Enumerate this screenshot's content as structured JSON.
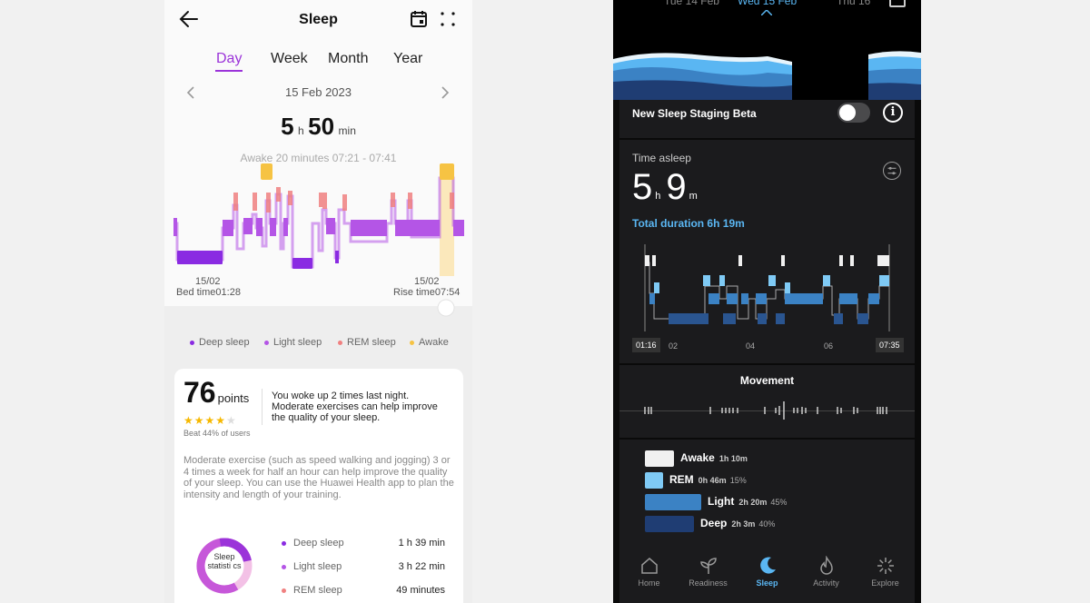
{
  "huawei": {
    "title": "Sleep",
    "tabs": [
      {
        "label": "Day",
        "active": true
      },
      {
        "label": "Week",
        "active": false
      },
      {
        "label": "Month",
        "active": false
      },
      {
        "label": "Year",
        "active": false
      }
    ],
    "date": "15 Feb 2023",
    "duration": {
      "h": "5",
      "h_unit": "h",
      "m": "50",
      "m_unit": "min"
    },
    "awake_note": "Awake 20 minutes 07:21 - 07:41",
    "bed": {
      "date": "15/02",
      "label": "Bed time01:28"
    },
    "rise": {
      "date": "15/02",
      "label": "Rise time07:54"
    },
    "legend": [
      {
        "label": "Deep sleep",
        "color": "#8a2be2"
      },
      {
        "label": "Light sleep",
        "color": "#b455e6"
      },
      {
        "label": "REM sleep",
        "color": "#f08080"
      },
      {
        "label": "Awake",
        "color": "#f6c343"
      }
    ],
    "score": {
      "value": "76",
      "unit": "points",
      "stars": "★★★★★",
      "beat": "Beat 44% of users"
    },
    "woke_text": "You woke up 2 times last night. Moderate exercises can help improve the quality of your sleep.",
    "advice": "Moderate exercise (such as speed walking and jogging) 3 or 4 times a week for half an hour can help improve the quality of your sleep. You can use the Huawei Health app to plan the intensity and length of your training.",
    "donut_label": "Sleep statisti cs",
    "stats": [
      {
        "label": "Deep sleep",
        "value": "1 h 39 min",
        "color": "#8a2be2"
      },
      {
        "label": "Light sleep",
        "value": "3 h 22 min",
        "color": "#b455e6"
      },
      {
        "label": "REM sleep",
        "value": "49 minutes",
        "color": "#f08080"
      }
    ]
  },
  "oura": {
    "days": [
      {
        "label": "Tue 14 Feb",
        "active": false
      },
      {
        "label": "Wed 15 Feb",
        "active": true
      },
      {
        "label": "Thu 16",
        "active": false
      }
    ],
    "beta_label": "New Sleep Staging Beta",
    "info_icon": "i",
    "time_asleep_label": "Time asleep",
    "time_asleep": {
      "h": "5",
      "h_unit": "h",
      "m": "9",
      "m_unit": "m"
    },
    "total_duration": "Total duration 6h 19m",
    "time_ticks": {
      "start": "01:16",
      "t1": "02",
      "t2": "04",
      "t3": "06",
      "end": "07:35"
    },
    "movement_label": "Movement",
    "stages": [
      {
        "name": "Awake",
        "duration": "1h 10m",
        "pct": "",
        "color": "#f0f0f0"
      },
      {
        "name": "REM",
        "duration": "0h 46m",
        "pct": "15%",
        "color": "#7fcaf5"
      },
      {
        "name": "Light",
        "duration": "2h 20m",
        "pct": "45%",
        "color": "#3b82c4"
      },
      {
        "name": "Deep",
        "duration": "2h 3m",
        "pct": "40%",
        "color": "#1f3d73"
      }
    ],
    "nav": [
      {
        "label": "Home",
        "active": false
      },
      {
        "label": "Readiness",
        "active": false
      },
      {
        "label": "Sleep",
        "active": true
      },
      {
        "label": "Activity",
        "active": false
      },
      {
        "label": "Explore",
        "active": false
      }
    ]
  }
}
